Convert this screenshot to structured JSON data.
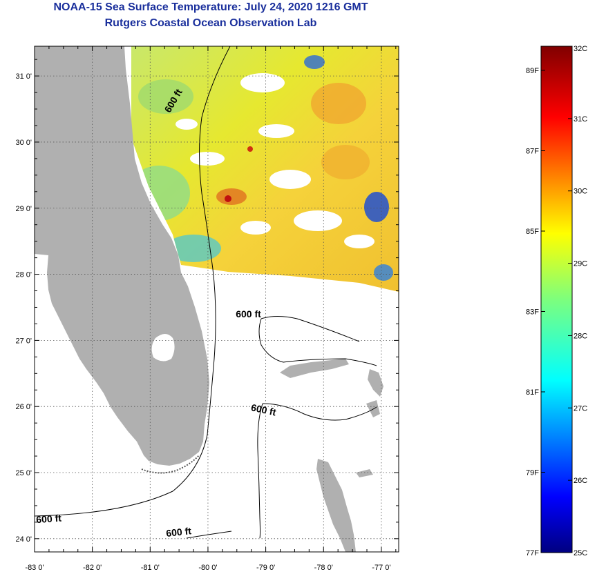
{
  "title": {
    "line1": "NOAA-15 Sea Surface Temperature:  July 24, 2020 1216 GMT",
    "line2": "Rutgers Coastal Ocean Observation Lab"
  },
  "colors": {
    "title": "#1a2f9c",
    "land": "#b0b0b0",
    "frame": "#000000",
    "grid": "#555555"
  },
  "map": {
    "lon_range": [
      -83,
      -76.7
    ],
    "lat_range": [
      23.8,
      31.45
    ],
    "lat_ticks": [
      {
        "value": 31,
        "label": "31 0'"
      },
      {
        "value": 30,
        "label": "30 0'"
      },
      {
        "value": 29,
        "label": "29 0'"
      },
      {
        "value": 28,
        "label": "28 0'"
      },
      {
        "value": 27,
        "label": "27 0'"
      },
      {
        "value": 26,
        "label": "26 0'"
      },
      {
        "value": 25,
        "label": "25 0'"
      },
      {
        "value": 24,
        "label": "24 0'"
      }
    ],
    "lon_ticks": [
      {
        "value": -83,
        "label": "-83 0'"
      },
      {
        "value": -82,
        "label": "-82 0'"
      },
      {
        "value": -81,
        "label": "-81 0'"
      },
      {
        "value": -80,
        "label": "-80 0'"
      },
      {
        "value": -79,
        "label": "-79 0'"
      },
      {
        "value": -78,
        "label": "-78 0'"
      },
      {
        "value": -77,
        "label": "-77 0'"
      }
    ],
    "contour_labels": [
      {
        "text": "600 ft",
        "lon": -80.55,
        "lat": 30.6,
        "rotate": -60
      },
      {
        "text": "600 ft",
        "lon": -79.3,
        "lat": 27.35,
        "rotate": 0
      },
      {
        "text": "600 ft",
        "lon": -79.05,
        "lat": 25.9,
        "rotate": 12
      },
      {
        "text": "600 ft",
        "lon": -82.75,
        "lat": 24.25,
        "rotate": -4
      },
      {
        "text": "600 ft",
        "lon": -80.5,
        "lat": 24.05,
        "rotate": -6
      }
    ]
  },
  "colorbar": {
    "min_c": 25,
    "max_c": 32,
    "celsius_labels": [
      {
        "value": 32,
        "label": "32C"
      },
      {
        "value": 31,
        "label": "31C"
      },
      {
        "value": 30,
        "label": "30C"
      },
      {
        "value": 29,
        "label": "29C"
      },
      {
        "value": 28,
        "label": "28C"
      },
      {
        "value": 27,
        "label": "27C"
      },
      {
        "value": 26,
        "label": "26C"
      },
      {
        "value": 25,
        "label": "25C"
      }
    ],
    "fahrenheit_labels": [
      {
        "value": 89,
        "label": "89F"
      },
      {
        "value": 87,
        "label": "87F"
      },
      {
        "value": 85,
        "label": "85F"
      },
      {
        "value": 83,
        "label": "83F"
      },
      {
        "value": 81,
        "label": "81F"
      },
      {
        "value": 79,
        "label": "79F"
      },
      {
        "value": 77,
        "label": "77F"
      }
    ],
    "stops": [
      {
        "offset": 0.0,
        "color": "#000080"
      },
      {
        "offset": 0.11,
        "color": "#0000ff"
      },
      {
        "offset": 0.34,
        "color": "#00ffff"
      },
      {
        "offset": 0.5,
        "color": "#7dff7d"
      },
      {
        "offset": 0.63,
        "color": "#ffff00"
      },
      {
        "offset": 0.86,
        "color": "#ff0000"
      },
      {
        "offset": 1.0,
        "color": "#800000"
      }
    ]
  }
}
